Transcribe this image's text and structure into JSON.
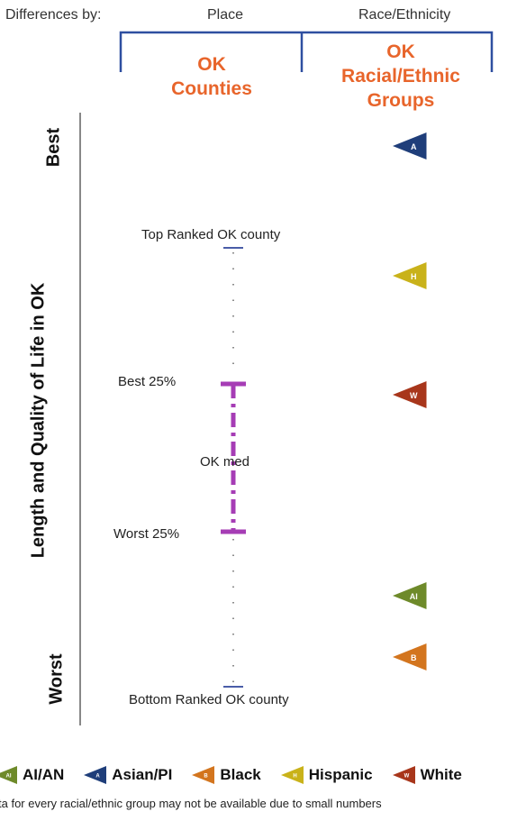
{
  "header": {
    "differences_by": "Differences by:",
    "place": "Place",
    "race": "Race/Ethnicity",
    "ok_counties_line1": "OK",
    "ok_counties_line2": "Counties",
    "ok_groups_line1": "OK",
    "ok_groups_line2": "Racial/Ethnic",
    "ok_groups_line3": "Groups"
  },
  "axis": {
    "title": "Length and Quality of Life in OK",
    "best": "Best",
    "worst": "Worst"
  },
  "county_range": {
    "top": "Top Ranked OK county",
    "best25": "Best 25%",
    "median": "OK med",
    "worst25": "Worst 25%",
    "bottom": "Bottom Ranked OK county"
  },
  "groups": [
    {
      "code": "A",
      "name": "Asian/PI",
      "color": "#1F3E7A"
    },
    {
      "code": "H",
      "name": "Hispanic",
      "color": "#C9B21A"
    },
    {
      "code": "W",
      "name": "White",
      "color": "#A8361B"
    },
    {
      "code": "AI",
      "name": "AI/AN",
      "color": "#6E8A2A"
    },
    {
      "code": "B",
      "name": "Black",
      "color": "#D3751E"
    }
  ],
  "legend": [
    {
      "code": "AI",
      "label": "AI/AN",
      "color": "#6E8A2A"
    },
    {
      "code": "A",
      "label": "Asian/PI",
      "color": "#1F3E7A"
    },
    {
      "code": "B",
      "label": "Black",
      "color": "#D3751E"
    },
    {
      "code": "H",
      "label": "Hispanic",
      "color": "#C9B21A"
    },
    {
      "code": "W",
      "label": "White",
      "color": "#A8361B"
    }
  ],
  "footnote": "ta for every racial/ethnic group may not be available due to small numbers",
  "colors": {
    "bracket": "#2E4FA0",
    "accent": "#E8652B",
    "iqr": "#A63DB5"
  }
}
